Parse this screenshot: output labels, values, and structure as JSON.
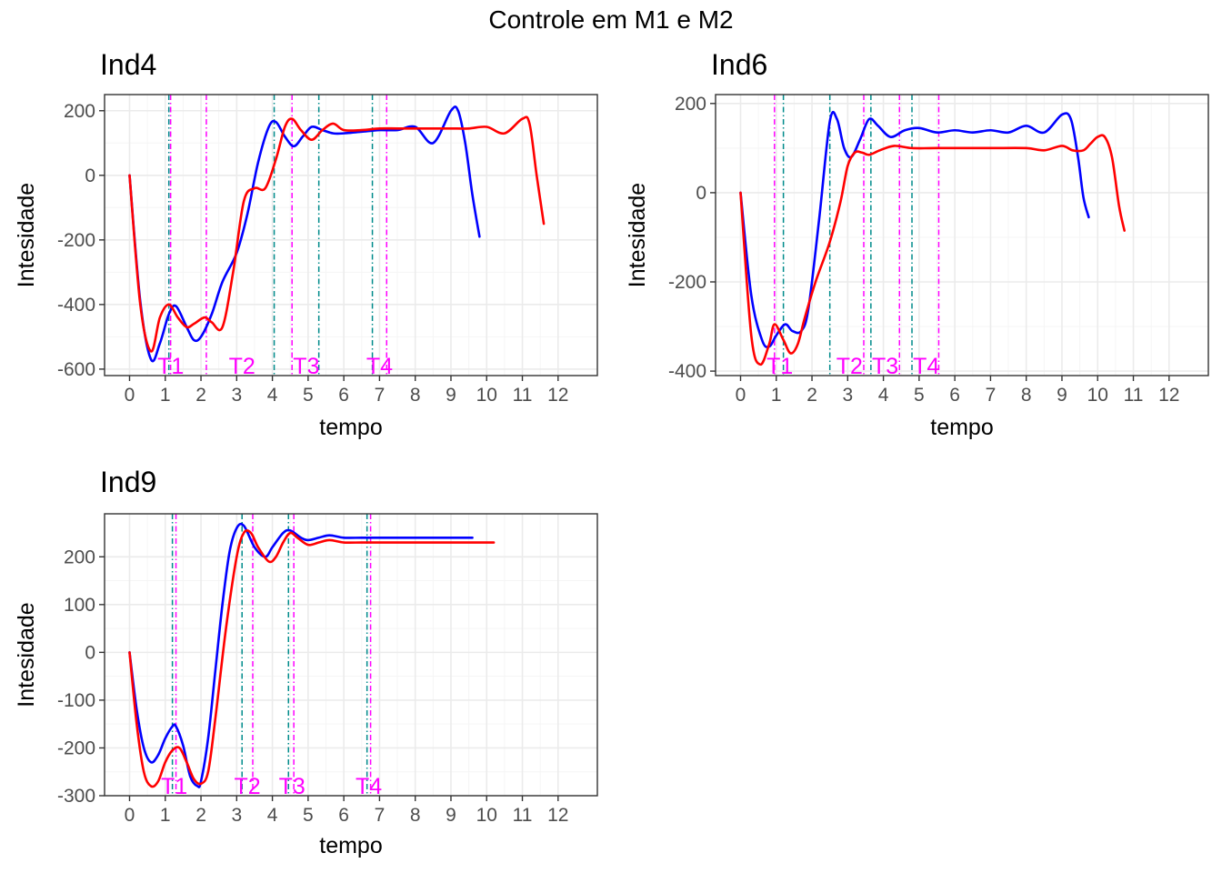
{
  "figure_title": "Controle em M1 e M2",
  "colors": {
    "series_m1": "#0000ff",
    "series_m2": "#ff0000",
    "marker_m1": "#008b8b",
    "marker_m2": "#ff00ff",
    "panel_border": "#333333",
    "grid_major": "#ebebeb",
    "grid_minor": "#f5f5f5"
  },
  "chart_data": [
    {
      "type": "line",
      "title": "Ind4",
      "xlabel": "tempo",
      "ylabel": "Intesidade",
      "xlim": [
        -0.7,
        13.1
      ],
      "ylim": [
        -620,
        250
      ],
      "xticks": [
        0,
        1,
        2,
        3,
        4,
        5,
        6,
        7,
        8,
        9,
        10,
        11,
        12
      ],
      "yticks": [
        -600,
        -400,
        -200,
        0,
        200
      ],
      "grid": true,
      "legend": "none",
      "series": [
        {
          "color": "#0000ff",
          "x": [
            0,
            0.3,
            0.6,
            0.85,
            1.1,
            1.3,
            1.6,
            1.8,
            2.0,
            2.3,
            2.6,
            3.0,
            3.3,
            3.6,
            3.9,
            4.1,
            4.35,
            4.6,
            4.85,
            5.1,
            5.4,
            5.7,
            6.0,
            6.5,
            7.0,
            7.5,
            8.0,
            8.5,
            9.0,
            9.2,
            9.4,
            9.6,
            9.8
          ],
          "y": [
            0,
            -390,
            -570,
            -520,
            -430,
            -405,
            -470,
            -510,
            -500,
            -430,
            -330,
            -240,
            -120,
            40,
            150,
            165,
            120,
            90,
            120,
            150,
            140,
            130,
            130,
            135,
            140,
            140,
            150,
            100,
            200,
            200,
            100,
            -60,
            -190
          ]
        },
        {
          "color": "#ff0000",
          "x": [
            0,
            0.3,
            0.6,
            0.85,
            1.1,
            1.35,
            1.6,
            1.8,
            2.1,
            2.3,
            2.6,
            2.9,
            3.2,
            3.5,
            3.8,
            4.1,
            4.35,
            4.55,
            4.8,
            5.1,
            5.4,
            5.7,
            6.0,
            6.5,
            7.0,
            7.5,
            8.0,
            8.5,
            9.0,
            9.5,
            10.0,
            10.5,
            11.0,
            11.2,
            11.4,
            11.6
          ],
          "y": [
            0,
            -400,
            -545,
            -440,
            -400,
            -440,
            -470,
            -460,
            -440,
            -455,
            -470,
            -300,
            -80,
            -40,
            -40,
            50,
            150,
            175,
            140,
            110,
            140,
            160,
            140,
            140,
            145,
            145,
            145,
            145,
            145,
            145,
            150,
            130,
            175,
            160,
            0,
            -150
          ]
        }
      ],
      "markers_m1": [
        1.1,
        4.05,
        5.3,
        6.8
      ],
      "markers_m2": [
        1.15,
        2.15,
        4.55,
        7.2
      ],
      "marker_labels": [
        {
          "text": "T1",
          "x": 1.15
        },
        {
          "text": "T2",
          "x": 3.15
        },
        {
          "text": "T3",
          "x": 4.95
        },
        {
          "text": "T4",
          "x": 7.0
        }
      ]
    },
    {
      "type": "line",
      "title": "Ind6",
      "xlabel": "tempo",
      "ylabel": "Intesidade",
      "xlim": [
        -0.7,
        13.1
      ],
      "ylim": [
        -410,
        220
      ],
      "xticks": [
        0,
        1,
        2,
        3,
        4,
        5,
        6,
        7,
        8,
        9,
        10,
        11,
        12
      ],
      "yticks": [
        -400,
        -200,
        0,
        200
      ],
      "grid": true,
      "legend": "none",
      "series": [
        {
          "color": "#0000ff",
          "x": [
            0,
            0.3,
            0.6,
            0.8,
            1.0,
            1.25,
            1.45,
            1.7,
            1.9,
            2.2,
            2.5,
            2.7,
            2.9,
            3.1,
            3.35,
            3.6,
            3.85,
            4.2,
            4.6,
            5.0,
            5.5,
            6.0,
            6.5,
            7.0,
            7.5,
            8.0,
            8.5,
            9.0,
            9.25,
            9.45,
            9.6,
            9.75
          ],
          "y": [
            0,
            -230,
            -330,
            -345,
            -320,
            -295,
            -310,
            -310,
            -260,
            -60,
            160,
            165,
            100,
            80,
            120,
            165,
            150,
            125,
            140,
            145,
            135,
            140,
            135,
            140,
            135,
            150,
            135,
            175,
            165,
            80,
            -10,
            -55
          ]
        },
        {
          "color": "#ff0000",
          "x": [
            0,
            0.3,
            0.55,
            0.8,
            0.95,
            1.2,
            1.4,
            1.6,
            1.8,
            2.1,
            2.5,
            2.8,
            3.0,
            3.2,
            3.4,
            3.6,
            3.9,
            4.3,
            4.8,
            5.5,
            6.0,
            7.0,
            8.0,
            8.5,
            9.0,
            9.3,
            9.6,
            9.8,
            10.0,
            10.2,
            10.4,
            10.6,
            10.75
          ],
          "y": [
            0,
            -320,
            -385,
            -340,
            -295,
            -330,
            -360,
            -340,
            -280,
            -200,
            -110,
            -20,
            60,
            90,
            90,
            85,
            95,
            105,
            100,
            100,
            100,
            100,
            100,
            95,
            105,
            95,
            95,
            110,
            125,
            125,
            80,
            -30,
            -85
          ]
        }
      ],
      "markers_m1": [
        1.2,
        2.5,
        3.65,
        4.8
      ],
      "markers_m2": [
        0.95,
        3.45,
        4.45,
        5.55
      ],
      "marker_labels": [
        {
          "text": "T1",
          "x": 1.1
        },
        {
          "text": "T2",
          "x": 3.05
        },
        {
          "text": "T3",
          "x": 4.05
        },
        {
          "text": "T4",
          "x": 5.2
        }
      ]
    },
    {
      "type": "line",
      "title": "Ind9",
      "xlabel": "tempo",
      "ylabel": "Intesidade",
      "xlim": [
        -0.7,
        13.1
      ],
      "ylim": [
        -300,
        290
      ],
      "xticks": [
        0,
        1,
        2,
        3,
        4,
        5,
        6,
        7,
        8,
        9,
        10,
        11,
        12
      ],
      "yticks": [
        -300,
        -200,
        -100,
        0,
        100,
        200
      ],
      "grid": true,
      "legend": "none",
      "series": [
        {
          "color": "#0000ff",
          "x": [
            0,
            0.2,
            0.4,
            0.6,
            0.8,
            1.0,
            1.2,
            1.3,
            1.5,
            1.7,
            1.9,
            2.0,
            2.2,
            2.4,
            2.6,
            2.8,
            3.0,
            3.2,
            3.5,
            3.8,
            4.0,
            4.3,
            4.5,
            4.8,
            5.0,
            5.3,
            5.6,
            6.0,
            6.5,
            7.0,
            8.0,
            9.0,
            9.6
          ],
          "y": [
            0,
            -120,
            -200,
            -230,
            -215,
            -180,
            -155,
            -155,
            -195,
            -260,
            -280,
            -270,
            -180,
            -40,
            100,
            210,
            260,
            265,
            220,
            200,
            220,
            250,
            255,
            240,
            235,
            240,
            245,
            240,
            240,
            240,
            240,
            240,
            240
          ]
        },
        {
          "color": "#ff0000",
          "x": [
            0,
            0.2,
            0.4,
            0.6,
            0.8,
            1.0,
            1.2,
            1.4,
            1.6,
            1.8,
            2.0,
            2.2,
            2.4,
            2.7,
            3.0,
            3.2,
            3.4,
            3.6,
            3.9,
            4.1,
            4.3,
            4.5,
            4.7,
            5.0,
            5.3,
            5.6,
            6.0,
            6.5,
            7.0,
            8.0,
            9.0,
            10.0,
            10.2
          ],
          "y": [
            0,
            -150,
            -250,
            -280,
            -270,
            -230,
            -205,
            -200,
            -230,
            -265,
            -275,
            -250,
            -140,
            50,
            200,
            250,
            250,
            220,
            190,
            200,
            230,
            250,
            240,
            225,
            230,
            235,
            230,
            230,
            230,
            230,
            230,
            230,
            230
          ]
        }
      ],
      "markers_m1": [
        1.2,
        3.15,
        4.45,
        6.65
      ],
      "markers_m2": [
        1.3,
        3.45,
        4.6,
        6.75
      ],
      "marker_labels": [
        {
          "text": "T1",
          "x": 1.25
        },
        {
          "text": "T2",
          "x": 3.3
        },
        {
          "text": "T3",
          "x": 4.55
        },
        {
          "text": "T4",
          "x": 6.7
        }
      ]
    }
  ]
}
